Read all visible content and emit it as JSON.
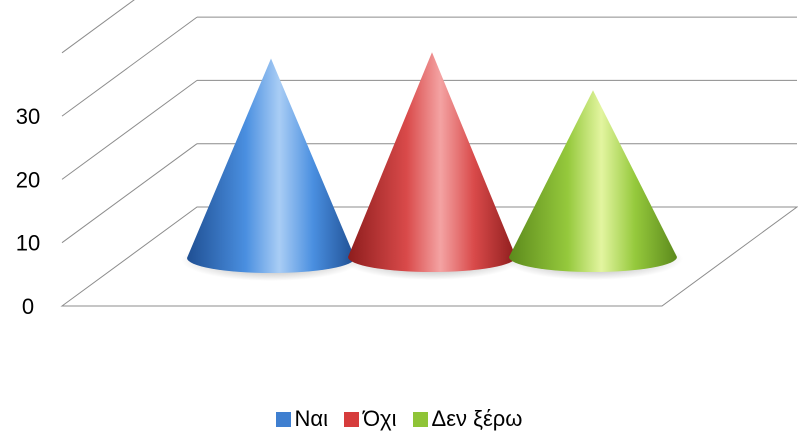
{
  "chart_data": {
    "type": "bar",
    "subtype": "3d-cone",
    "categories": [
      ""
    ],
    "series": [
      {
        "name": "Ναι",
        "values": [
          30
        ],
        "color": "#3f7fd0"
      },
      {
        "name": "Όχι",
        "values": [
          31
        ],
        "color": "#d63c3c"
      },
      {
        "name": "Δεν ξέρω",
        "values": [
          25
        ],
        "color": "#8fc437"
      }
    ],
    "yticks": [
      "0",
      "10",
      "20",
      "30"
    ],
    "ylim": [
      0,
      40
    ],
    "grid": true,
    "legend": "bottom"
  }
}
